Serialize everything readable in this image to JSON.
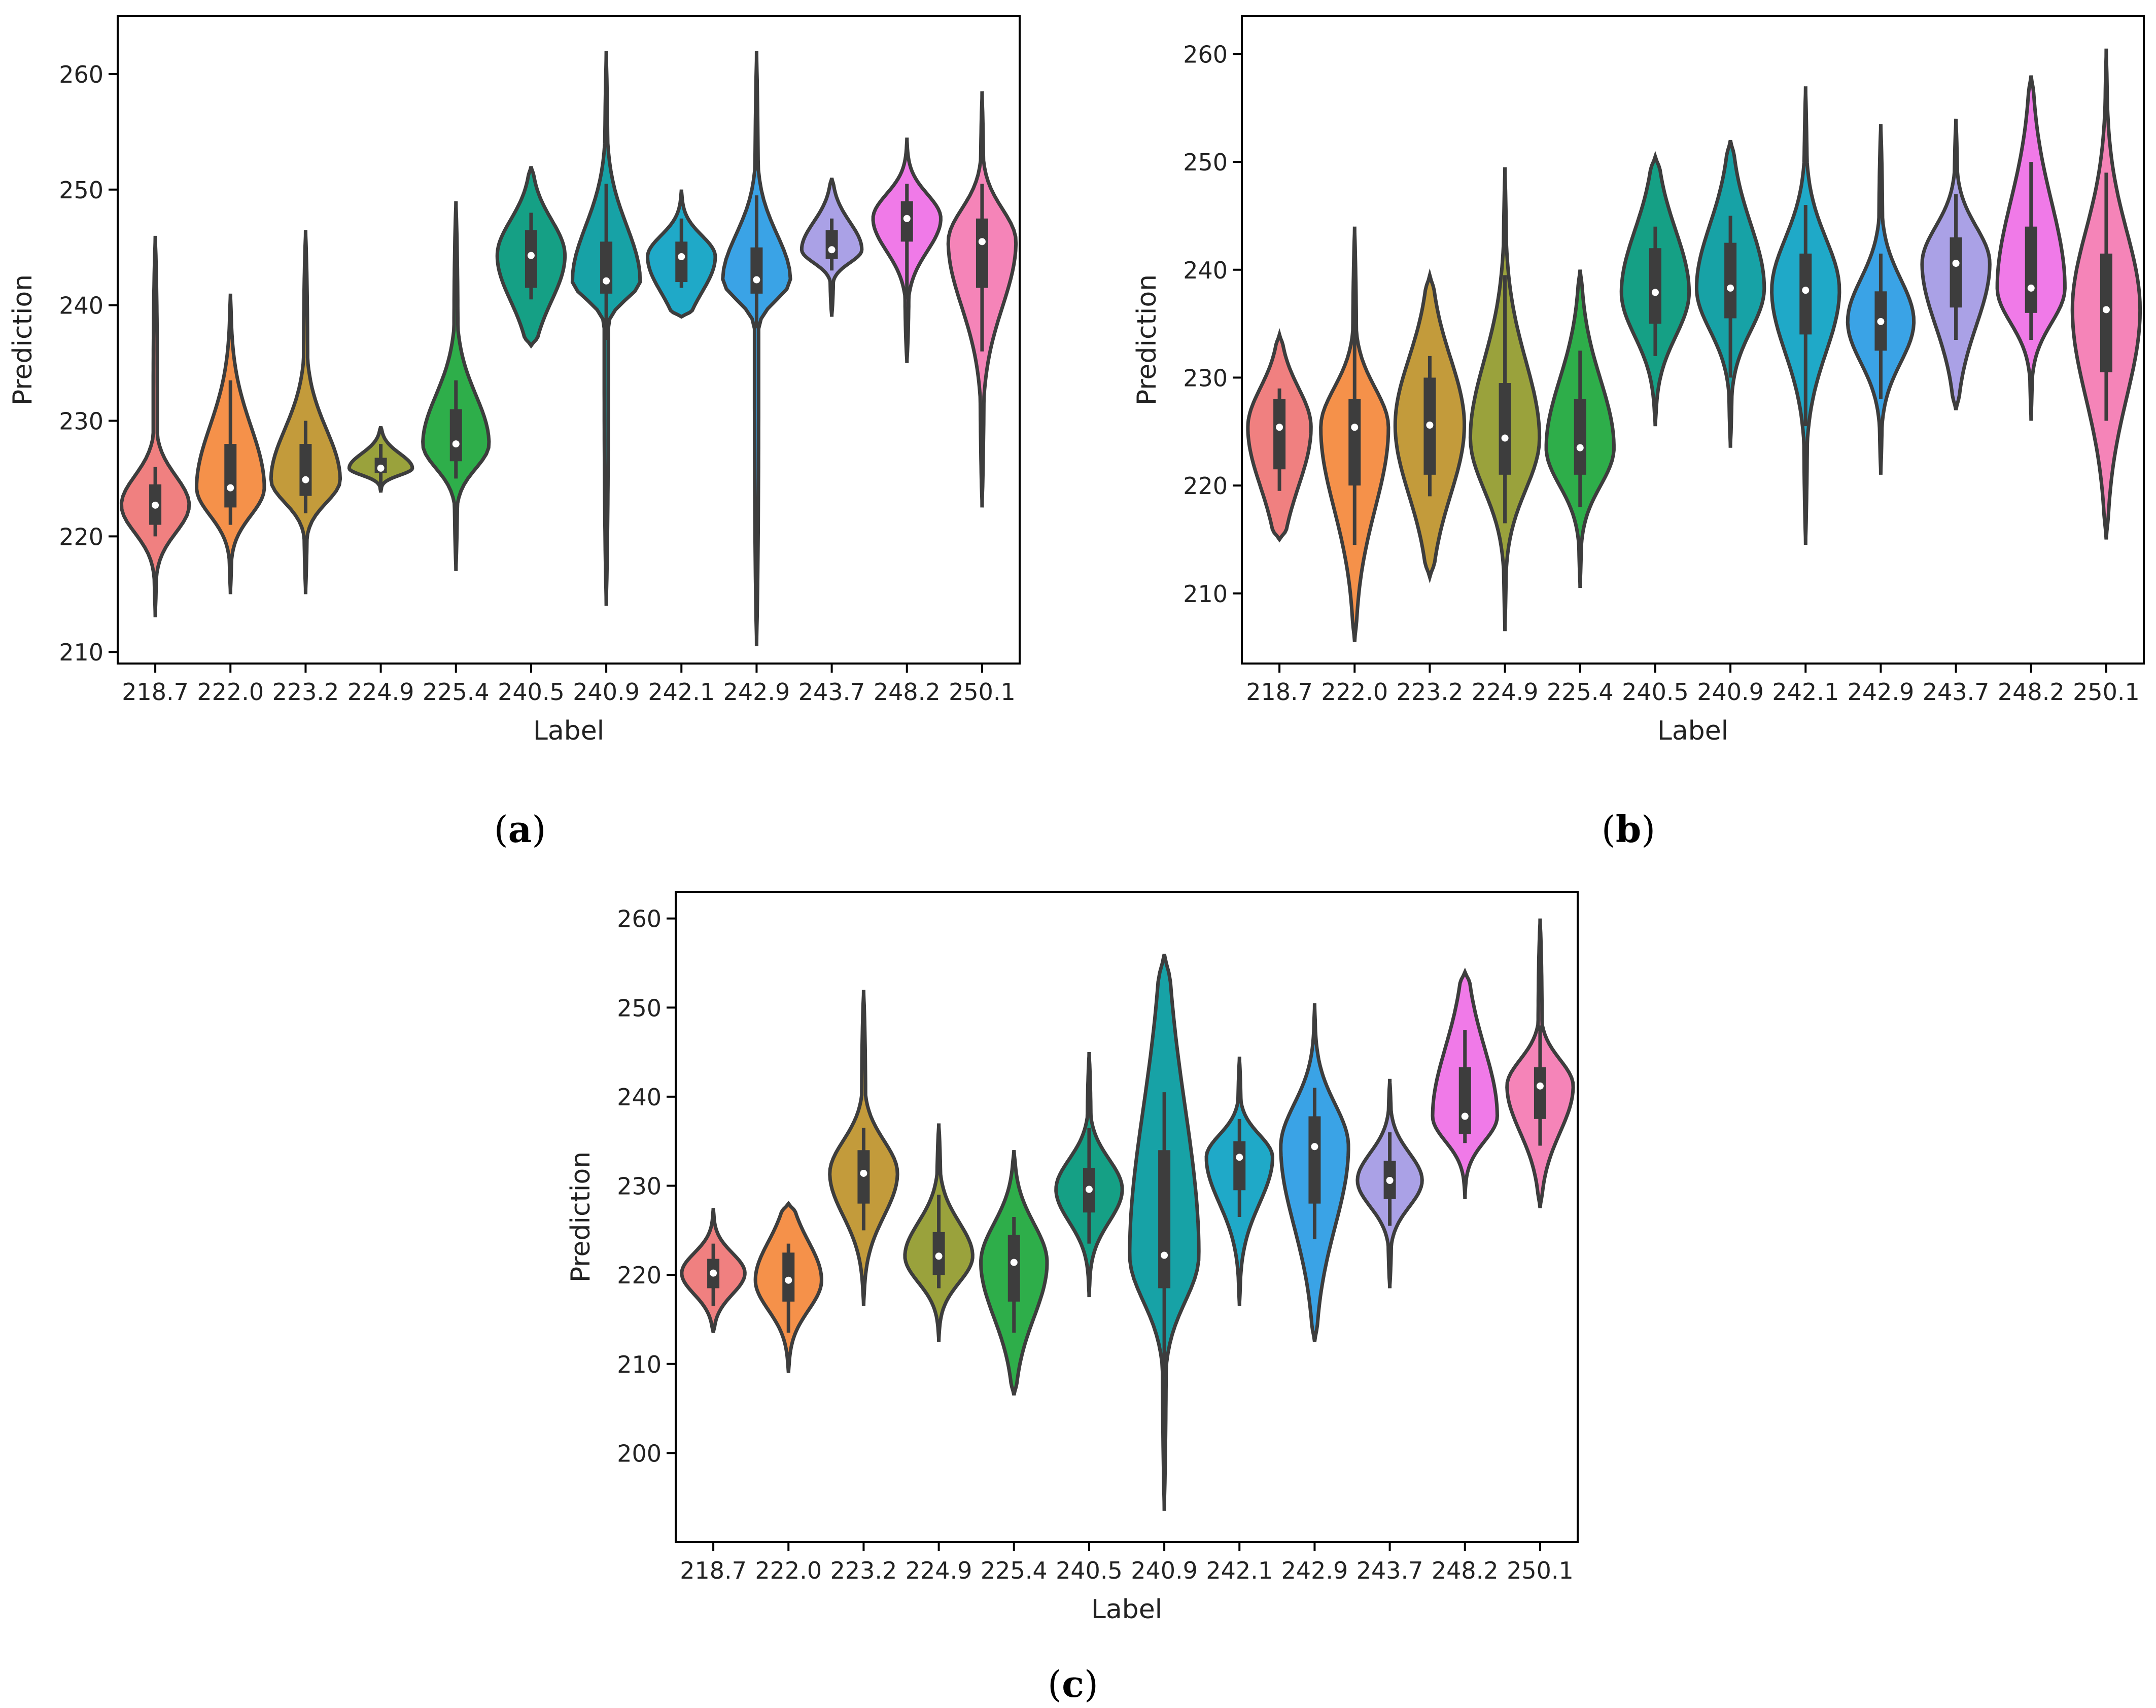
{
  "chart_data": [
    {
      "type": "violin",
      "panel": "a",
      "xlabel": "Label",
      "ylabel": "Prediction",
      "ylim": [
        209,
        265
      ],
      "yticks": [
        210,
        220,
        230,
        240,
        250,
        260
      ],
      "categories": [
        "218.7",
        "222.0",
        "223.2",
        "224.9",
        "225.4",
        "240.5",
        "240.9",
        "242.1",
        "242.9",
        "243.7",
        "248.2",
        "250.1"
      ],
      "colors": [
        "#f08080",
        "#f5914a",
        "#c39b3b",
        "#9aa23c",
        "#2eae4a",
        "#15a085",
        "#17a2a6",
        "#1fa9c8",
        "#3aa3e6",
        "#aaa1e6",
        "#f07ae8",
        "#f584b8"
      ],
      "violins": [
        {
          "min": 213,
          "q1": 221,
          "median": 222.7,
          "q3": 224.5,
          "max": 246,
          "wlo": 220,
          "whi": 226,
          "width": 0.45
        },
        {
          "min": 215,
          "q1": 222.5,
          "median": 224.2,
          "q3": 228,
          "max": 241,
          "wlo": 221,
          "whi": 233.5,
          "width": 0.45
        },
        {
          "min": 215,
          "q1": 223.5,
          "median": 224.9,
          "q3": 228,
          "max": 246.5,
          "wlo": 222,
          "whi": 230,
          "width": 0.46
        },
        {
          "min": 223.8,
          "q1": 225.5,
          "median": 225.9,
          "q3": 226.8,
          "max": 229.5,
          "wlo": 224.5,
          "whi": 228,
          "width": 0.42
        },
        {
          "min": 217,
          "q1": 226.5,
          "median": 228,
          "q3": 231,
          "max": 249,
          "wlo": 225,
          "whi": 233.5,
          "width": 0.44
        },
        {
          "min": 236.5,
          "q1": 241.5,
          "median": 244.3,
          "q3": 246.5,
          "max": 252,
          "wlo": 240.5,
          "whi": 248,
          "width": 0.45
        },
        {
          "min": 214,
          "q1": 241,
          "median": 242.1,
          "q3": 245.5,
          "max": 262,
          "wlo": 237,
          "whi": 250.5,
          "width": 0.45
        },
        {
          "min": 239,
          "q1": 242,
          "median": 244.2,
          "q3": 245.5,
          "max": 250,
          "wlo": 241.5,
          "whi": 247.5,
          "width": 0.45
        },
        {
          "min": 210.5,
          "q1": 241,
          "median": 242.2,
          "q3": 245,
          "max": 262,
          "wlo": 238,
          "whi": 249.5,
          "width": 0.45
        },
        {
          "min": 239,
          "q1": 244,
          "median": 244.8,
          "q3": 246.5,
          "max": 251,
          "wlo": 243,
          "whi": 247.5,
          "width": 0.4
        },
        {
          "min": 235,
          "q1": 245.5,
          "median": 247.5,
          "q3": 249,
          "max": 254.5,
          "wlo": 240.5,
          "whi": 250.5,
          "width": 0.45
        },
        {
          "min": 222.5,
          "q1": 241.5,
          "median": 245.5,
          "q3": 247.5,
          "max": 258.5,
          "wlo": 236,
          "whi": 250.5,
          "width": 0.45
        }
      ]
    },
    {
      "type": "violin",
      "panel": "b",
      "xlabel": "Label",
      "ylabel": "Prediction",
      "ylim": [
        203.5,
        263.5
      ],
      "yticks": [
        210,
        220,
        230,
        240,
        250,
        260
      ],
      "categories": [
        "218.7",
        "222.0",
        "223.2",
        "224.9",
        "225.4",
        "240.5",
        "240.9",
        "242.1",
        "242.9",
        "243.7",
        "248.2",
        "250.1"
      ],
      "colors": [
        "#f08080",
        "#f5914a",
        "#c39b3b",
        "#9aa23c",
        "#2eae4a",
        "#15a085",
        "#17a2a6",
        "#1fa9c8",
        "#3aa3e6",
        "#aaa1e6",
        "#f07ae8",
        "#f584b8"
      ],
      "violins": [
        {
          "min": 215,
          "q1": 221.5,
          "median": 225.4,
          "q3": 228,
          "max": 234,
          "wlo": 219.5,
          "whi": 229,
          "width": 0.42
        },
        {
          "min": 205.5,
          "q1": 220,
          "median": 225.4,
          "q3": 228,
          "max": 244,
          "wlo": 214.5,
          "whi": 235,
          "width": 0.45
        },
        {
          "min": 211.5,
          "q1": 221,
          "median": 225.6,
          "q3": 230,
          "max": 239.5,
          "wlo": 219,
          "whi": 232,
          "width": 0.46
        },
        {
          "min": 206.5,
          "q1": 221,
          "median": 224.4,
          "q3": 229.5,
          "max": 249.5,
          "wlo": 216.5,
          "whi": 239.5,
          "width": 0.46
        },
        {
          "min": 210.5,
          "q1": 221,
          "median": 223.5,
          "q3": 228,
          "max": 240,
          "wlo": 218,
          "whi": 232.5,
          "width": 0.45
        },
        {
          "min": 225.5,
          "q1": 235,
          "median": 237.9,
          "q3": 242,
          "max": 250.5,
          "wlo": 232,
          "whi": 244,
          "width": 0.45
        },
        {
          "min": 223.5,
          "q1": 235.5,
          "median": 238.3,
          "q3": 242.5,
          "max": 252,
          "wlo": 230,
          "whi": 245,
          "width": 0.45
        },
        {
          "min": 214.5,
          "q1": 234,
          "median": 238.1,
          "q3": 241.5,
          "max": 257,
          "wlo": 225.5,
          "whi": 246,
          "width": 0.45
        },
        {
          "min": 221,
          "q1": 232.5,
          "median": 235.2,
          "q3": 238,
          "max": 253.5,
          "wlo": 228,
          "whi": 241.5,
          "width": 0.44
        },
        {
          "min": 227,
          "q1": 236.5,
          "median": 240.6,
          "q3": 243,
          "max": 254,
          "wlo": 233.5,
          "whi": 247,
          "width": 0.45
        },
        {
          "min": 226,
          "q1": 236,
          "median": 238.3,
          "q3": 244,
          "max": 258,
          "wlo": 233.5,
          "whi": 250,
          "width": 0.45
        },
        {
          "min": 215,
          "q1": 230.5,
          "median": 236.3,
          "q3": 241.5,
          "max": 260.5,
          "wlo": 226,
          "whi": 249,
          "width": 0.45
        }
      ]
    },
    {
      "type": "violin",
      "panel": "c",
      "xlabel": "Label",
      "ylabel": "Prediction",
      "ylim": [
        190,
        263
      ],
      "yticks": [
        200,
        210,
        220,
        230,
        240,
        250,
        260
      ],
      "categories": [
        "218.7",
        "222.0",
        "223.2",
        "224.9",
        "225.4",
        "240.5",
        "240.9",
        "242.1",
        "242.9",
        "243.7",
        "248.2",
        "250.1"
      ],
      "colors": [
        "#f08080",
        "#f5914a",
        "#c39b3b",
        "#9aa23c",
        "#2eae4a",
        "#15a085",
        "#17a2a6",
        "#1fa9c8",
        "#3aa3e6",
        "#aaa1e6",
        "#f07ae8",
        "#f584b8"
      ],
      "violins": [
        {
          "min": 213.5,
          "q1": 218.5,
          "median": 220.2,
          "q3": 221.8,
          "max": 227.5,
          "wlo": 216.5,
          "whi": 223.5,
          "width": 0.42
        },
        {
          "min": 209,
          "q1": 217,
          "median": 219.4,
          "q3": 222.5,
          "max": 228,
          "wlo": 213.5,
          "whi": 223.5,
          "width": 0.44
        },
        {
          "min": 216.5,
          "q1": 228,
          "median": 231.4,
          "q3": 234,
          "max": 252,
          "wlo": 225,
          "whi": 236.5,
          "width": 0.45
        },
        {
          "min": 212.5,
          "q1": 220,
          "median": 222.1,
          "q3": 224.8,
          "max": 237,
          "wlo": 218.5,
          "whi": 229,
          "width": 0.45
        },
        {
          "min": 206.5,
          "q1": 217,
          "median": 221.4,
          "q3": 224.5,
          "max": 234,
          "wlo": 213.5,
          "whi": 226.5,
          "width": 0.44
        },
        {
          "min": 217.5,
          "q1": 227,
          "median": 229.6,
          "q3": 232,
          "max": 245,
          "wlo": 223.5,
          "whi": 236.5,
          "width": 0.44
        },
        {
          "min": 193.5,
          "q1": 218.5,
          "median": 222.2,
          "q3": 234,
          "max": 256,
          "wlo": 208.5,
          "whi": 240.5,
          "width": 0.46
        },
        {
          "min": 216.5,
          "q1": 229.5,
          "median": 233.2,
          "q3": 235,
          "max": 244.5,
          "wlo": 226.5,
          "whi": 237.5,
          "width": 0.44
        },
        {
          "min": 212.5,
          "q1": 228,
          "median": 234.4,
          "q3": 237.8,
          "max": 250.5,
          "wlo": 224,
          "whi": 241,
          "width": 0.45
        },
        {
          "min": 218.5,
          "q1": 228.5,
          "median": 230.6,
          "q3": 232.8,
          "max": 242,
          "wlo": 225.5,
          "whi": 236,
          "width": 0.43
        },
        {
          "min": 228.5,
          "q1": 235.8,
          "median": 237.8,
          "q3": 243.3,
          "max": 254,
          "wlo": 234.8,
          "whi": 247.5,
          "width": 0.43
        },
        {
          "min": 227.5,
          "q1": 237.5,
          "median": 241.2,
          "q3": 243.3,
          "max": 260,
          "wlo": 234.5,
          "whi": 248,
          "width": 0.44
        }
      ]
    }
  ],
  "panels": [
    {
      "label_open": "(",
      "label_letter": "a",
      "label_close": ")"
    },
    {
      "label_open": "(",
      "label_letter": "b",
      "label_close": ")"
    },
    {
      "label_open": "(",
      "label_letter": "c",
      "label_close": ")"
    }
  ]
}
